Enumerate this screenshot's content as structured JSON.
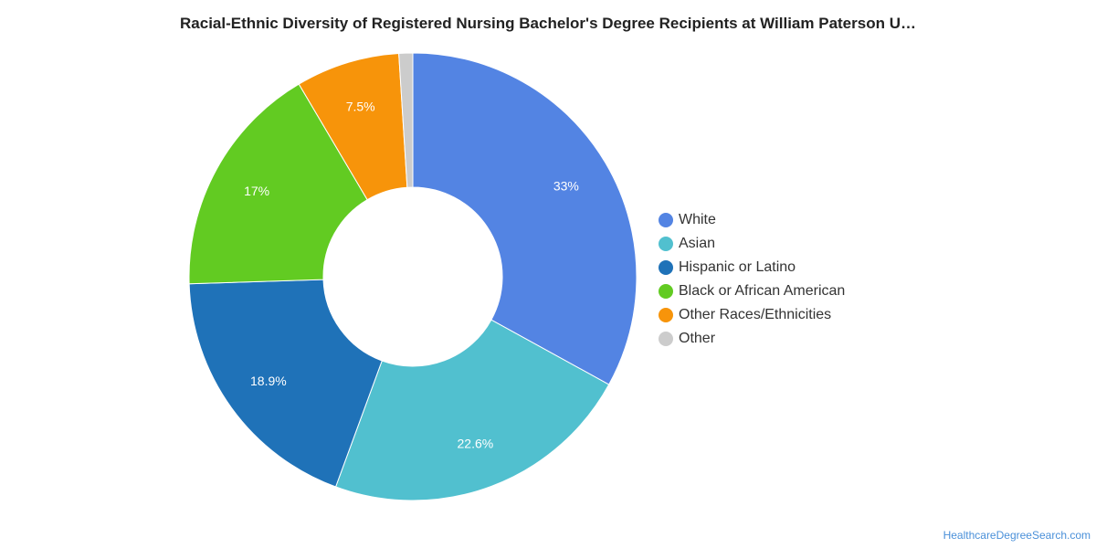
{
  "chart_data": {
    "type": "pie",
    "title": "Racial-Ethnic Diversity of Registered Nursing Bachelor's Degree Recipients at William Paterson U…",
    "categories": [
      "White",
      "Asian",
      "Hispanic or Latino",
      "Black or African American",
      "Other Races/Ethnicities",
      "Other"
    ],
    "values": [
      33.0,
      22.6,
      18.9,
      17.0,
      7.5,
      1.0
    ],
    "data_labels": [
      "33%",
      "22.6%",
      "18.9%",
      "17%",
      "7.5%",
      ""
    ],
    "colors": [
      "#5384e3",
      "#51c0cf",
      "#1f72b8",
      "#62cb22",
      "#f7940a",
      "#cccccc"
    ],
    "donut": true,
    "legend_position": "right"
  },
  "watermark": "HealthcareDegreeSearch.com"
}
